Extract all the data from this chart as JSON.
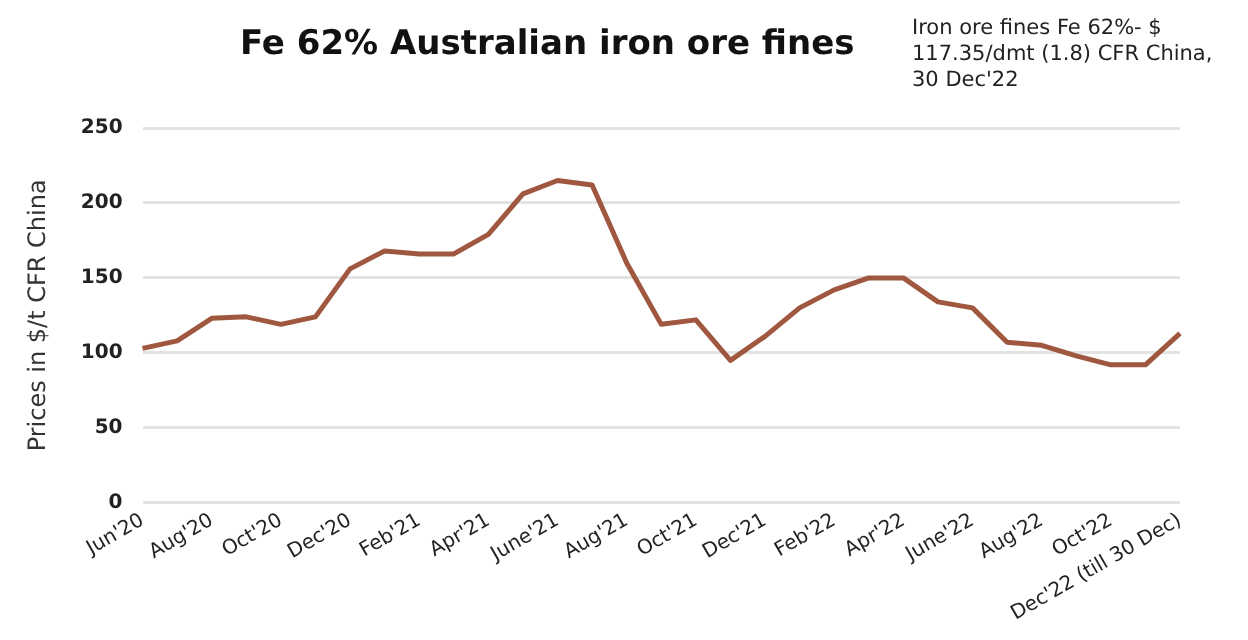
{
  "chart_data": {
    "type": "line",
    "title": "Fe 62% Australian iron ore fines",
    "subtitle": "Iron ore fines Fe 62%- $ 117.35/dmt (1.8) CFR China, 30 Dec'22",
    "ylabel": "Prices in $/t CFR China",
    "categories": [
      "Jun'20",
      null,
      "Aug'20",
      null,
      "Oct'20",
      null,
      "Dec'20",
      null,
      "Feb'21",
      null,
      "Apr'21",
      null,
      "June'21",
      null,
      "Aug'21",
      null,
      "Oct'21",
      null,
      "Dec'21",
      null,
      "Feb'22",
      null,
      "Apr'22",
      null,
      "June'22",
      null,
      "Aug'22",
      null,
      "Oct'22",
      null,
      "Dec'22 (till 30 Dec)"
    ],
    "series": [
      {
        "color": "#a0573f",
        "values": [
          103,
          108,
          123,
          124,
          119,
          124,
          156,
          168,
          166,
          166,
          179,
          206,
          215,
          212,
          160,
          119,
          122,
          95,
          111,
          130,
          142,
          150,
          150,
          134,
          130,
          107,
          105,
          98,
          92,
          92,
          113
        ]
      }
    ],
    "ylim": [
      0,
      250
    ],
    "yticks": [
      0,
      50,
      100,
      150,
      200,
      250
    ],
    "grid": "y",
    "legend": false,
    "marker": "none",
    "line_style": "solid"
  }
}
